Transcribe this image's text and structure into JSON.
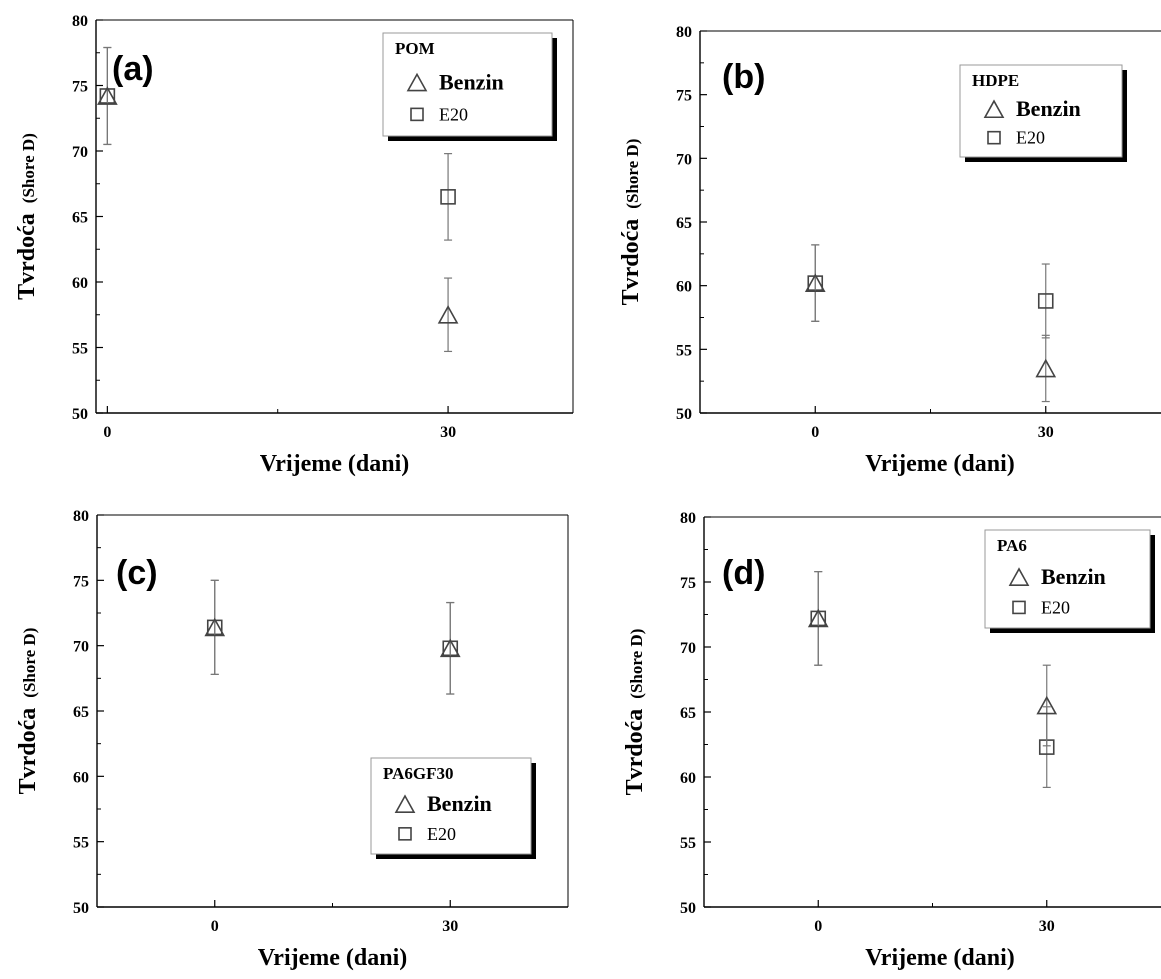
{
  "chart_data": [
    {
      "type": "scatter",
      "panel_label": "(a)",
      "legend_title": "POM",
      "legend_placement": "top-right",
      "xlabel": "Vrijeme (dani)",
      "ylabel": "Tvrdoća",
      "ylabel_unit": "(Shore D)",
      "xlim": [
        -1,
        41
      ],
      "ylim": [
        50,
        80
      ],
      "xticks": [
        0,
        30
      ],
      "yticks": [
        50,
        55,
        60,
        65,
        70,
        75,
        80
      ],
      "grid": false,
      "series": [
        {
          "name": "Benzin",
          "marker": "triangle",
          "x": [
            0,
            30
          ],
          "y": [
            74.2,
            57.5
          ],
          "err": [
            3.7,
            2.8
          ]
        },
        {
          "name": "E20",
          "marker": "square",
          "x": [
            0,
            30
          ],
          "y": [
            74.2,
            66.5
          ],
          "err": [
            3.7,
            3.3
          ]
        }
      ]
    },
    {
      "type": "scatter",
      "panel_label": "(b)",
      "legend_title": "HDPE",
      "legend_placement": "top-right",
      "xlabel": "Vrijeme (dani)",
      "ylabel": "Tvrdoća",
      "ylabel_unit": "(Shore D)",
      "xlim": [
        -15,
        45
      ],
      "ylim": [
        50,
        80
      ],
      "xticks": [
        0,
        30
      ],
      "yticks": [
        50,
        55,
        60,
        65,
        70,
        75,
        80
      ],
      "grid": false,
      "series": [
        {
          "name": "Benzin",
          "marker": "triangle",
          "x": [
            0,
            30
          ],
          "y": [
            60.2,
            53.5
          ],
          "err": [
            3.0,
            2.6
          ]
        },
        {
          "name": "E20",
          "marker": "square",
          "x": [
            0,
            30
          ],
          "y": [
            60.2,
            58.8
          ],
          "err": [
            3.0,
            2.9
          ]
        }
      ]
    },
    {
      "type": "scatter",
      "panel_label": "(c)",
      "legend_title": "PA6GF30",
      "legend_placement": "bottom-right",
      "xlabel": "Vrijeme (dani)",
      "ylabel": "Tvrdoća",
      "ylabel_unit": "(Shore D)",
      "xlim": [
        -15,
        45
      ],
      "ylim": [
        50,
        80
      ],
      "xticks": [
        0,
        30
      ],
      "yticks": [
        50,
        55,
        60,
        65,
        70,
        75,
        80
      ],
      "grid": false,
      "series": [
        {
          "name": "Benzin",
          "marker": "triangle",
          "x": [
            0,
            30
          ],
          "y": [
            71.4,
            69.8
          ],
          "err": [
            3.6,
            3.5
          ]
        },
        {
          "name": "E20",
          "marker": "square",
          "x": [
            0,
            30
          ],
          "y": [
            71.4,
            69.8
          ],
          "err": [
            3.6,
            3.5
          ]
        }
      ]
    },
    {
      "type": "scatter",
      "panel_label": "(d)",
      "legend_title": "PA6",
      "legend_placement": "top-right",
      "xlabel": "Vrijeme (dani)",
      "ylabel": "Tvrdoća",
      "ylabel_unit": "(Shore D)",
      "xlim": [
        -15,
        45
      ],
      "ylim": [
        50,
        80
      ],
      "xticks": [
        0,
        30
      ],
      "yticks": [
        50,
        55,
        60,
        65,
        70,
        75,
        80
      ],
      "grid": false,
      "series": [
        {
          "name": "Benzin",
          "marker": "triangle",
          "x": [
            0,
            30
          ],
          "y": [
            72.2,
            65.5
          ],
          "err": [
            3.6,
            3.1
          ]
        },
        {
          "name": "E20",
          "marker": "square",
          "x": [
            0,
            30
          ],
          "y": [
            72.2,
            62.3
          ],
          "err": [
            3.6,
            3.1
          ]
        }
      ]
    }
  ]
}
